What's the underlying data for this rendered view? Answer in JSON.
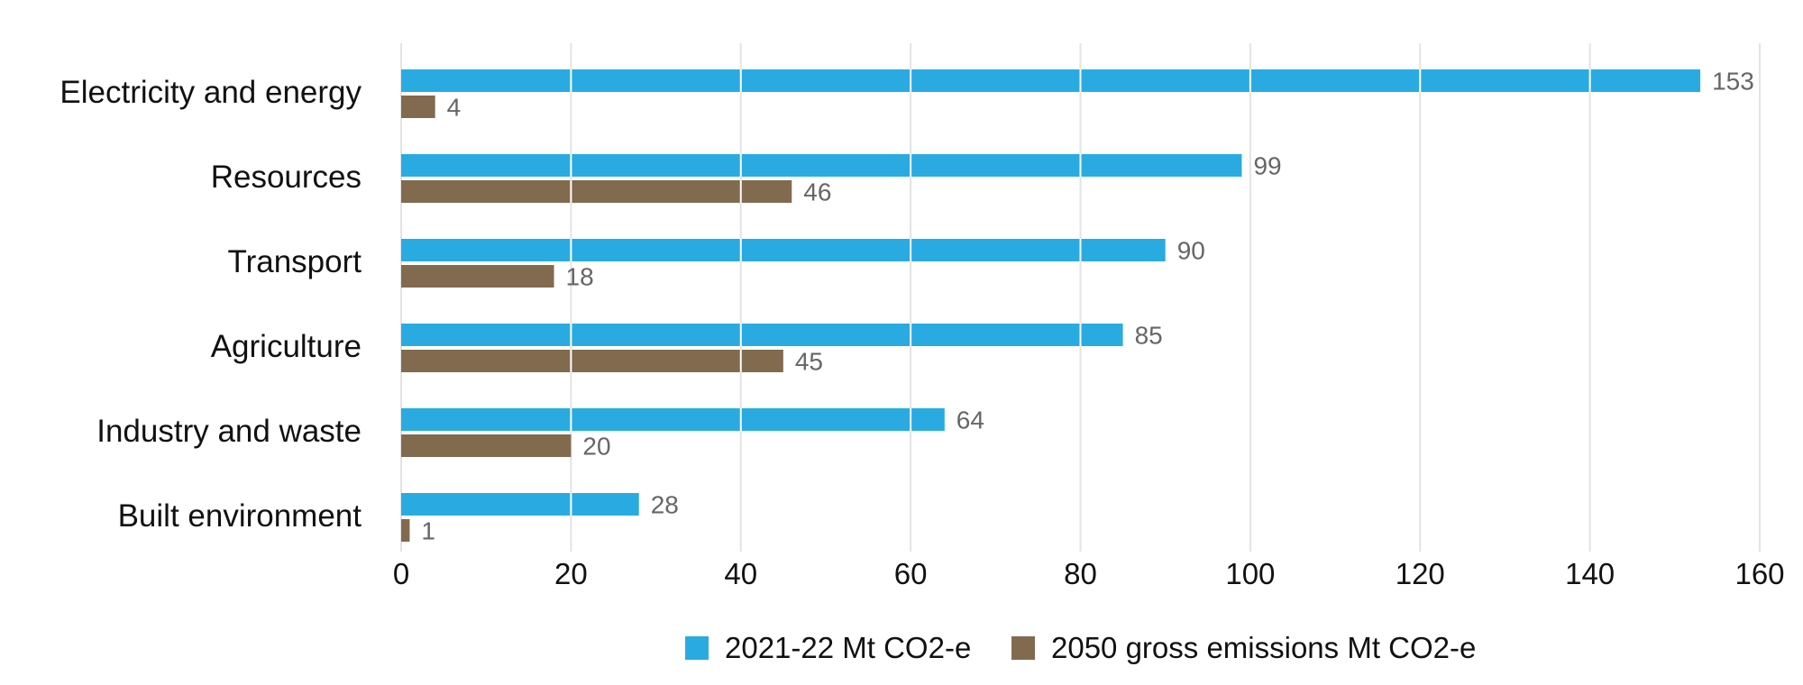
{
  "chart_data": {
    "type": "bar",
    "orientation": "horizontal",
    "title": "",
    "xlabel": "",
    "ylabel": "",
    "categories": [
      "Electricity and energy",
      "Resources",
      "Transport",
      "Agriculture",
      "Industry and waste",
      "Built environment"
    ],
    "series": [
      {
        "name": "2021-22 Mt CO2-e",
        "color": "#29abe2",
        "values": [
          153,
          99,
          90,
          85,
          64,
          28
        ]
      },
      {
        "name": "2050 gross emissions Mt CO2-e",
        "color": "#826a4f",
        "values": [
          4,
          46,
          18,
          45,
          20,
          1
        ]
      }
    ],
    "xlim": [
      0,
      160
    ],
    "xticks": [
      0,
      20,
      40,
      60,
      80,
      100,
      120,
      140,
      160
    ],
    "grid": true,
    "legend_position": "bottom-center",
    "data_labels": true
  }
}
